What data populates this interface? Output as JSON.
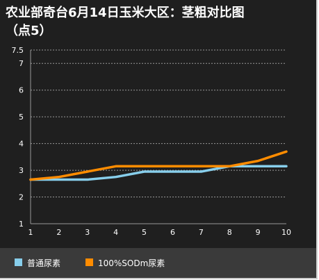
{
  "chart_data": {
    "type": "line",
    "title": "农业部奇台6月14日玉米大区：茎粗对比图\n（点5）",
    "xlabel": "",
    "ylabel": "",
    "x": [
      1,
      2,
      3,
      4,
      5,
      6,
      7,
      8,
      9,
      10
    ],
    "x_tick_labels": [
      "1",
      "2",
      "3",
      "4",
      "5",
      "6",
      "7",
      "8",
      "9",
      "10"
    ],
    "y_tick_labels": [
      "1",
      "2",
      "3",
      "4",
      "5",
      "6",
      "7",
      "7.5"
    ],
    "y_ticks": [
      1,
      2,
      3,
      4,
      5,
      6,
      7,
      7.5
    ],
    "ylim": [
      1,
      7.5
    ],
    "grid": true,
    "legend_position": "bottom-left",
    "series": [
      {
        "name": "普通尿素",
        "color": "#87ceeb",
        "values": [
          2.65,
          2.65,
          2.65,
          2.75,
          2.95,
          2.95,
          2.95,
          3.15,
          3.15,
          3.15
        ]
      },
      {
        "name": "100%SODm尿素",
        "color": "#ff8c00",
        "values": [
          2.65,
          2.75,
          2.95,
          3.15,
          3.15,
          3.15,
          3.15,
          3.15,
          3.35,
          3.7
        ]
      }
    ]
  }
}
